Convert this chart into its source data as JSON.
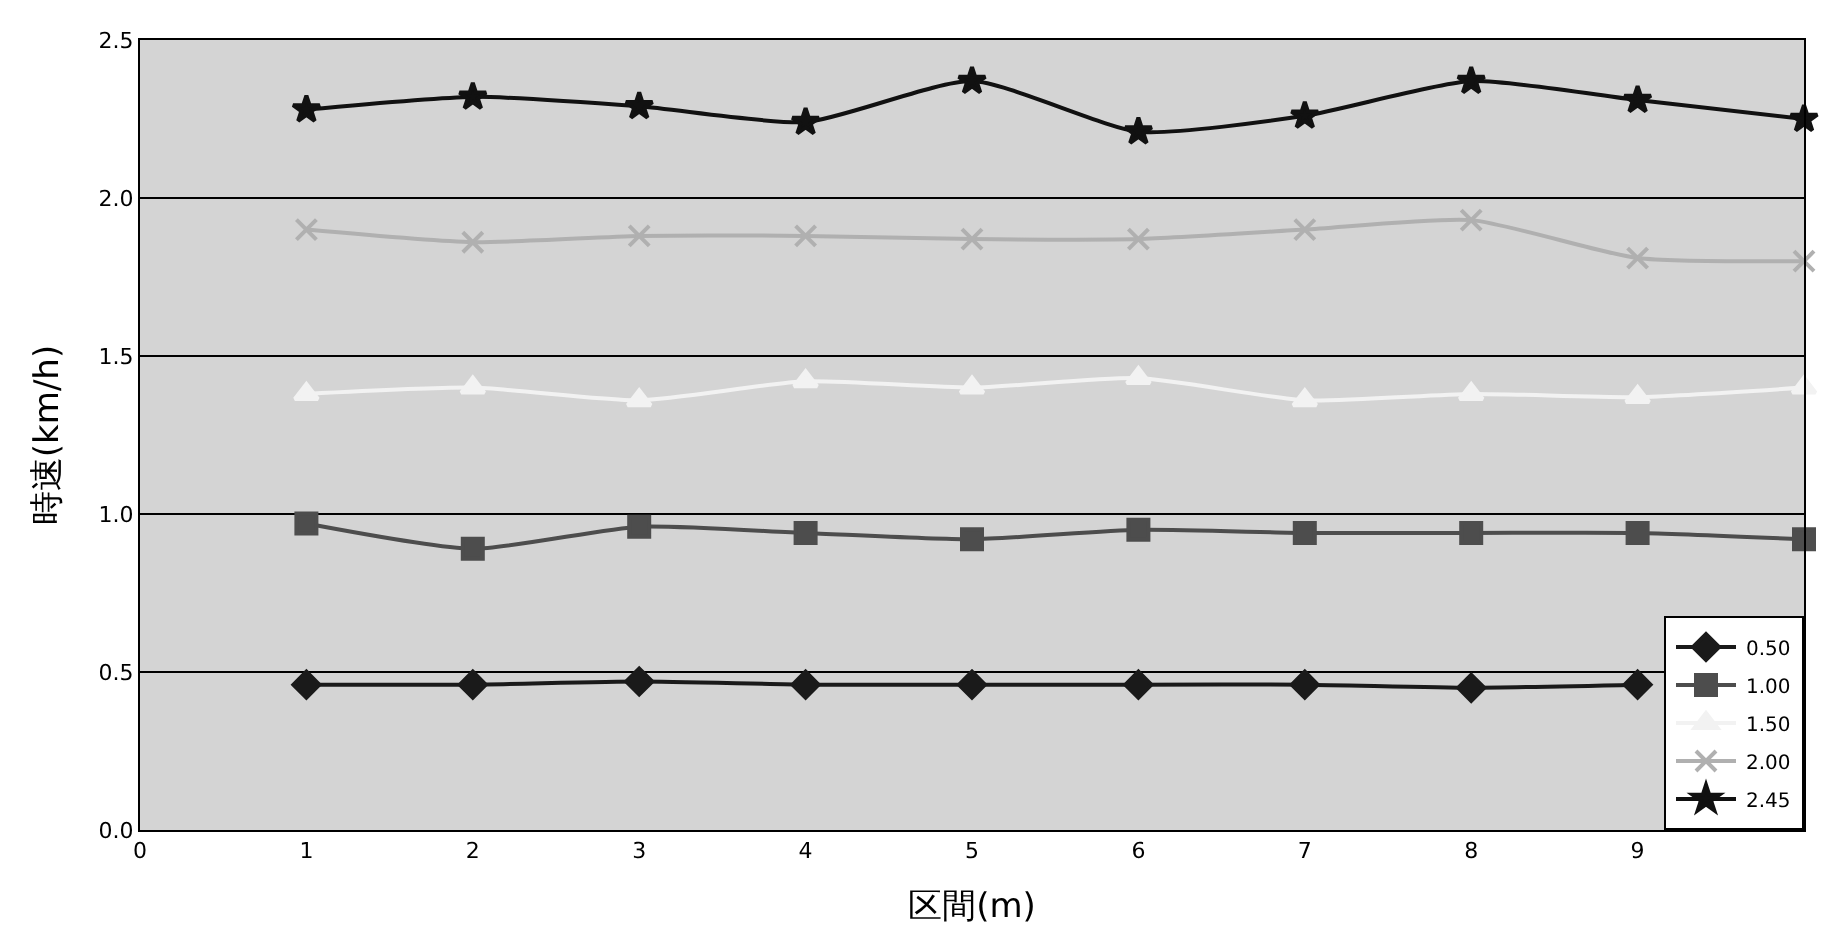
{
  "chart_data": {
    "type": "line",
    "xlabel": "区間(m)",
    "ylabel": "時速(km/h)",
    "x": [
      1,
      2,
      3,
      4,
      5,
      6,
      7,
      8,
      9,
      10
    ],
    "xlim": [
      0,
      10
    ],
    "xticks": [
      0,
      1,
      2,
      3,
      4,
      5,
      6,
      7,
      8,
      9
    ],
    "ylim": [
      0,
      2.5
    ],
    "yticks": [
      {
        "value": 0,
        "label": "0.0"
      },
      {
        "value": 0.5,
        "label": "0.5"
      },
      {
        "value": 1,
        "label": "1.0"
      },
      {
        "value": 1.5,
        "label": "1.5"
      },
      {
        "value": 2,
        "label": "2.0"
      },
      {
        "value": 2.5,
        "label": "2.5"
      }
    ],
    "grid": "y",
    "legend": "bottom right",
    "series": [
      {
        "name": "0.50",
        "color": "#1a1a1a",
        "marker": "diamond",
        "values": [
          0.46,
          0.46,
          0.47,
          0.46,
          0.46,
          0.46,
          0.46,
          0.45,
          0.46,
          null
        ]
      },
      {
        "name": "1.00",
        "color": "#4d4d4d",
        "marker": "square",
        "values": [
          0.97,
          0.89,
          0.96,
          0.94,
          0.92,
          0.95,
          0.94,
          0.94,
          0.94,
          0.92
        ]
      },
      {
        "name": "1.50",
        "color": "#f2f2f2",
        "marker": "triangle",
        "values": [
          1.38,
          1.4,
          1.36,
          1.42,
          1.4,
          1.43,
          1.36,
          1.38,
          1.37,
          1.4
        ]
      },
      {
        "name": "2.00",
        "color": "#b0b0b0",
        "marker": "cross",
        "values": [
          1.9,
          1.86,
          1.88,
          1.88,
          1.87,
          1.87,
          1.9,
          1.93,
          1.81,
          1.8
        ]
      },
      {
        "name": "2.45",
        "color": "#111111",
        "marker": "star",
        "values": [
          2.28,
          2.32,
          2.29,
          2.24,
          2.37,
          2.21,
          2.26,
          2.37,
          2.31,
          2.25
        ]
      }
    ]
  }
}
